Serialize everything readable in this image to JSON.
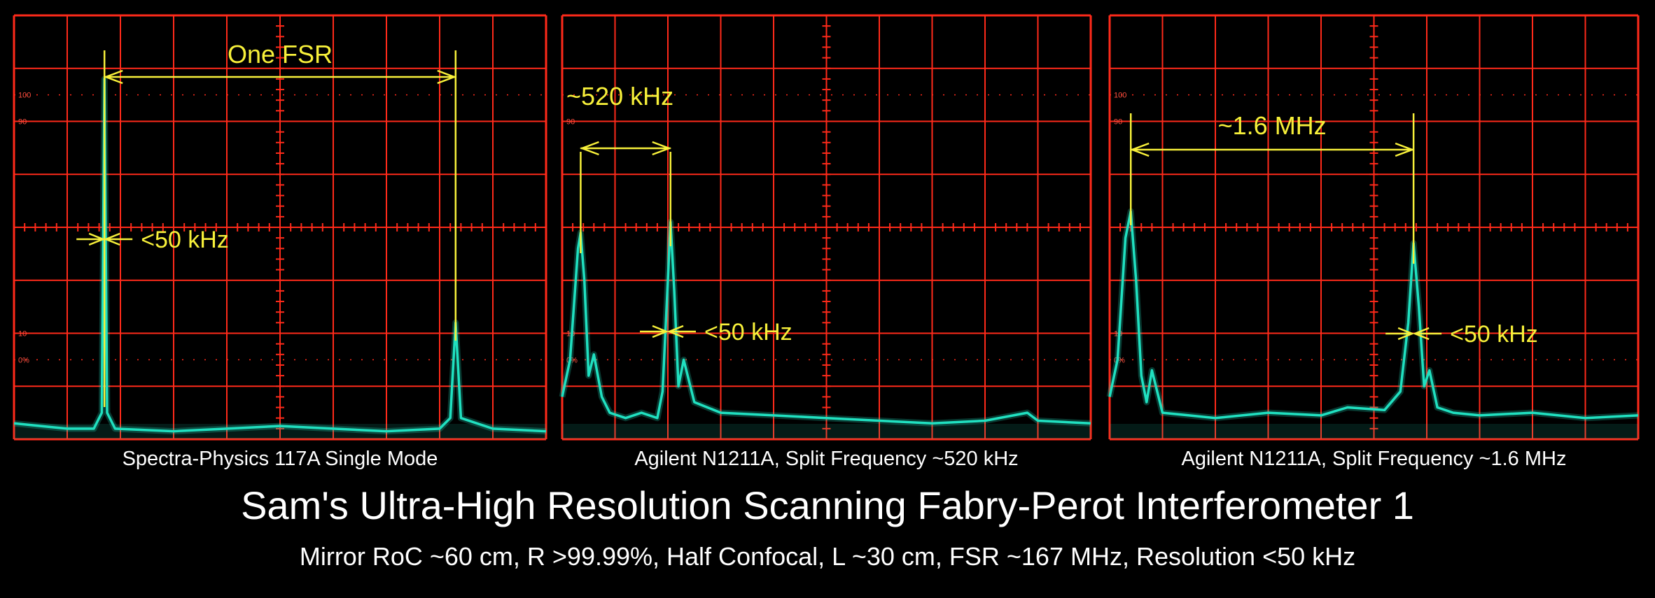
{
  "title": "Sam's Ultra-High Resolution Scanning Fabry-Perot Interferometer 1",
  "subtitle": "Mirror RoC ~60 cm, R >99.99%, Half Confocal, L ~30 cm, FSR ~167 MHz, Resolution <50 kHz",
  "colors": {
    "grid": "#ff2a1a",
    "trace": "#20e0c0",
    "annotation": "#f7f03a",
    "scale_text": "#ff5040"
  },
  "chart_data": [
    {
      "type": "line",
      "caption": "Spectra-Physics 117A Single Mode",
      "scale_labels": [
        "100",
        "90",
        "10",
        "0%"
      ],
      "grid": {
        "cols": 10,
        "rows": 8
      },
      "annotations": [
        {
          "text": "One FSR",
          "kind": "span",
          "x_from": 1.7,
          "x_to": 8.3
        },
        {
          "text": "<50 kHz",
          "kind": "resolution",
          "x": 1.7
        }
      ],
      "series": [
        {
          "x": [
            0,
            0.5,
            1.0,
            1.5,
            1.65,
            1.7,
            1.75,
            1.9,
            3,
            4,
            5,
            6,
            7,
            8,
            8.2,
            8.3,
            8.4,
            9,
            10
          ],
          "y": [
            0.3,
            0.25,
            0.2,
            0.2,
            0.5,
            6.8,
            0.5,
            0.2,
            0.15,
            0.2,
            0.25,
            0.2,
            0.15,
            0.2,
            0.4,
            2.2,
            0.4,
            0.2,
            0.15
          ]
        }
      ]
    },
    {
      "type": "line",
      "caption": "Agilent N1211A, Split Frequency ~520 kHz",
      "scale_labels": [
        "90",
        "10",
        "0%"
      ],
      "grid": {
        "cols": 10,
        "rows": 8
      },
      "annotations": [
        {
          "text": "~520 kHz",
          "kind": "span",
          "x_from": 0.35,
          "x_to": 2.05
        },
        {
          "text": "<50 kHz",
          "kind": "resolution",
          "x": 2.0
        }
      ],
      "series": [
        {
          "x": [
            0,
            0.15,
            0.3,
            0.35,
            0.42,
            0.5,
            0.6,
            0.75,
            0.9,
            1.2,
            1.5,
            1.8,
            1.9,
            2.0,
            2.05,
            2.12,
            2.2,
            2.3,
            2.5,
            3,
            4,
            5,
            6,
            7,
            8,
            8.8,
            9,
            10
          ],
          "y": [
            0.8,
            1.5,
            3.6,
            3.9,
            3.0,
            1.2,
            1.6,
            0.8,
            0.5,
            0.4,
            0.5,
            0.4,
            0.9,
            3.0,
            4.1,
            2.8,
            1.0,
            1.5,
            0.7,
            0.5,
            0.45,
            0.4,
            0.35,
            0.3,
            0.35,
            0.5,
            0.35,
            0.3
          ]
        }
      ]
    },
    {
      "type": "line",
      "caption": "Agilent N1211A, Split Frequency ~1.6 MHz",
      "scale_labels": [
        "100",
        "90",
        "10",
        "0%"
      ],
      "grid": {
        "cols": 10,
        "rows": 8
      },
      "annotations": [
        {
          "text": "~1.6 MHz",
          "kind": "span",
          "x_from": 0.4,
          "x_to": 5.75
        },
        {
          "text": "<50 kHz",
          "kind": "resolution",
          "x": 5.75
        }
      ],
      "series": [
        {
          "x": [
            0,
            0.15,
            0.3,
            0.4,
            0.5,
            0.6,
            0.7,
            0.8,
            1.0,
            1.5,
            2,
            3,
            4,
            4.5,
            5.2,
            5.5,
            5.65,
            5.75,
            5.85,
            5.95,
            6.05,
            6.2,
            6.5,
            7,
            8,
            9,
            10
          ],
          "y": [
            0.8,
            1.5,
            3.8,
            4.3,
            3.0,
            1.2,
            0.7,
            1.3,
            0.5,
            0.45,
            0.4,
            0.5,
            0.45,
            0.6,
            0.55,
            0.9,
            2.2,
            3.7,
            2.5,
            1.0,
            1.3,
            0.6,
            0.5,
            0.45,
            0.5,
            0.4,
            0.45
          ]
        }
      ]
    }
  ]
}
